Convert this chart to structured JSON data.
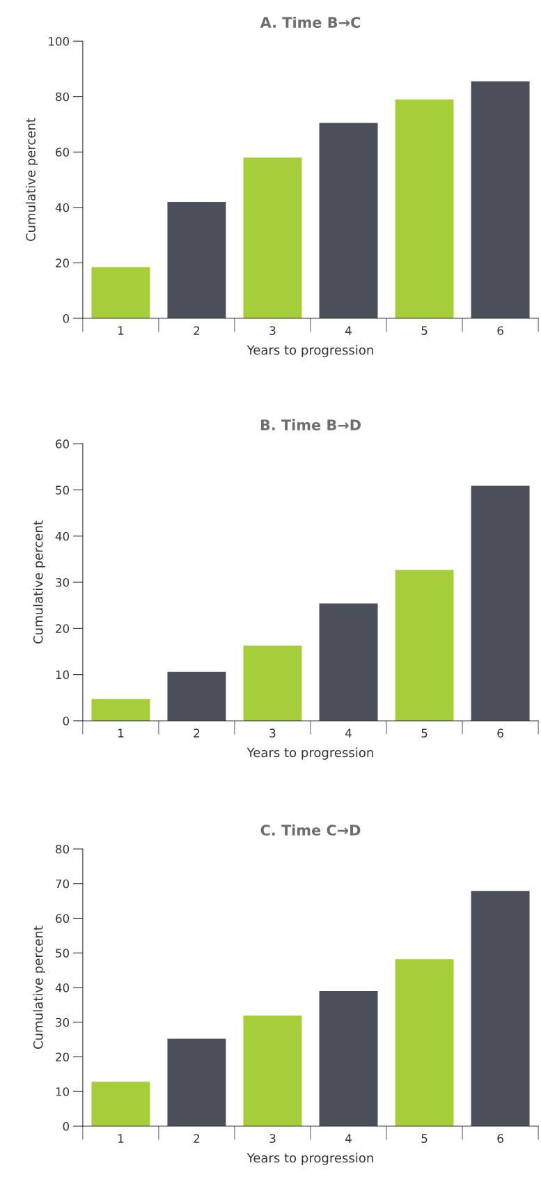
{
  "chart_data": [
    {
      "type": "bar",
      "title": "A. Time B→C",
      "xlabel": "Years to progression",
      "ylabel": "Cumulative percent",
      "categories": [
        "1",
        "2",
        "3",
        "4",
        "5",
        "6"
      ],
      "values": [
        18.5,
        42,
        58,
        70.5,
        79,
        85.5
      ],
      "colors": [
        "#a6ce39",
        "#4a4f5a",
        "#a6ce39",
        "#4a4f5a",
        "#a6ce39",
        "#4a4f5a"
      ],
      "ylim": [
        0,
        100
      ],
      "yticks": [
        0,
        20,
        40,
        60,
        80,
        100
      ],
      "grid": false,
      "legend": false
    },
    {
      "type": "bar",
      "title": "B. Time B→D",
      "xlabel": "Years to progression",
      "ylabel": "Cumulative percent",
      "categories": [
        "1",
        "2",
        "3",
        "4",
        "5",
        "6"
      ],
      "values": [
        4.7,
        10.6,
        16.3,
        25.4,
        32.7,
        50.9
      ],
      "colors": [
        "#a6ce39",
        "#4a4f5a",
        "#a6ce39",
        "#4a4f5a",
        "#a6ce39",
        "#4a4f5a"
      ],
      "ylim": [
        0,
        60
      ],
      "yticks": [
        0,
        10,
        20,
        30,
        40,
        50,
        60
      ],
      "grid": false,
      "legend": false
    },
    {
      "type": "bar",
      "title": "C. Time C→D",
      "xlabel": "Years to progression",
      "ylabel": "Cumulative percent",
      "categories": [
        "1",
        "2",
        "3",
        "4",
        "5",
        "6"
      ],
      "values": [
        12.8,
        25.2,
        31.9,
        39,
        48.2,
        67.9
      ],
      "colors": [
        "#a6ce39",
        "#4a4f5a",
        "#a6ce39",
        "#4a4f5a",
        "#a6ce39",
        "#4a4f5a"
      ],
      "ylim": [
        0,
        80
      ],
      "yticks": [
        0,
        10,
        20,
        30,
        40,
        50,
        60,
        70,
        80
      ],
      "grid": false,
      "legend": false
    }
  ]
}
